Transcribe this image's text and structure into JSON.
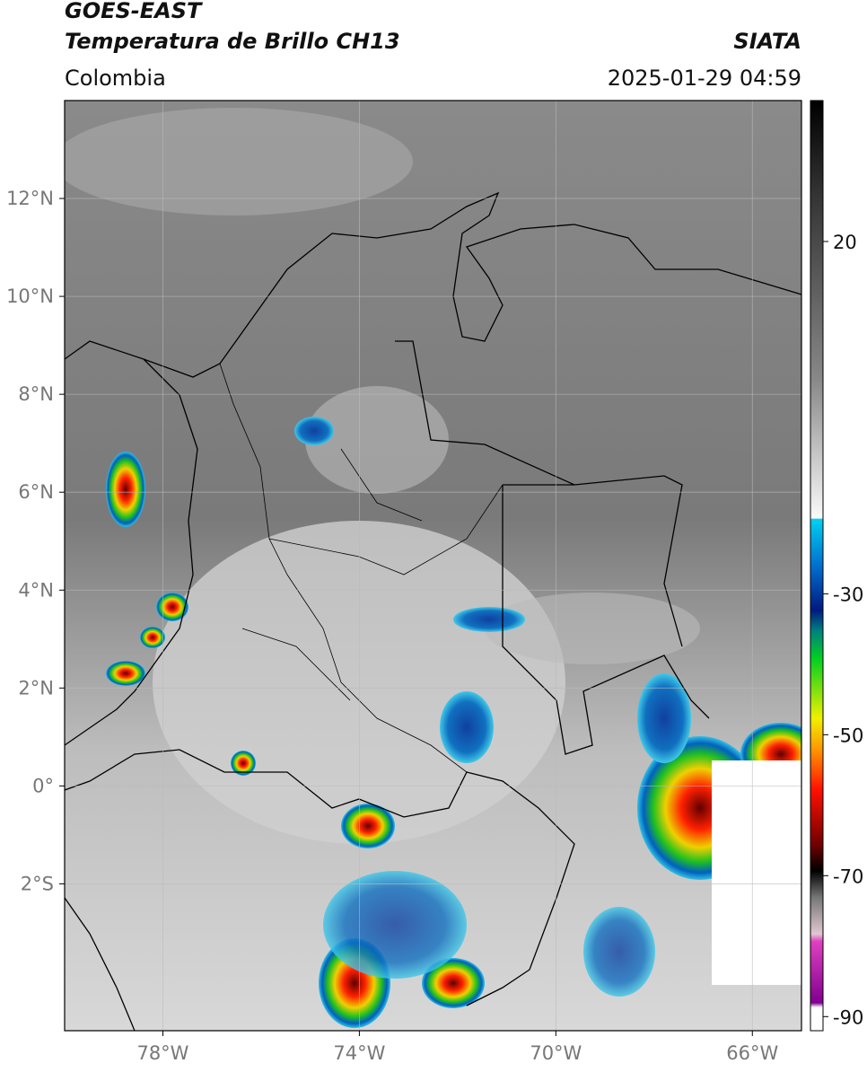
{
  "header": {
    "title": "GOES-EAST",
    "subtitle": "Temperatura de Brillo CH13",
    "source": "SIATA",
    "region": "Colombia",
    "datetime": "2025-01-29 04:59"
  },
  "map": {
    "xlim": [
      -80,
      -65
    ],
    "ylim": [
      -5,
      14
    ],
    "xticks": [
      {
        "value": -78,
        "label": "78°W"
      },
      {
        "value": -74,
        "label": "74°W"
      },
      {
        "value": -70,
        "label": "70°W"
      },
      {
        "value": -66,
        "label": "66°W"
      }
    ],
    "yticks": [
      {
        "value": 12,
        "label": "12°N"
      },
      {
        "value": 10,
        "label": "10°N"
      },
      {
        "value": 8,
        "label": "8°N"
      },
      {
        "value": 6,
        "label": "6°N"
      },
      {
        "value": 4,
        "label": "4°N"
      },
      {
        "value": 2,
        "label": "2°N"
      },
      {
        "value": 0,
        "label": "0°"
      },
      {
        "value": -2,
        "label": "2°S"
      }
    ],
    "grid": true
  },
  "colorbar": {
    "lim": [
      -92,
      40
    ],
    "ticks": [
      20,
      -30,
      -50,
      -70,
      -90
    ]
  }
}
